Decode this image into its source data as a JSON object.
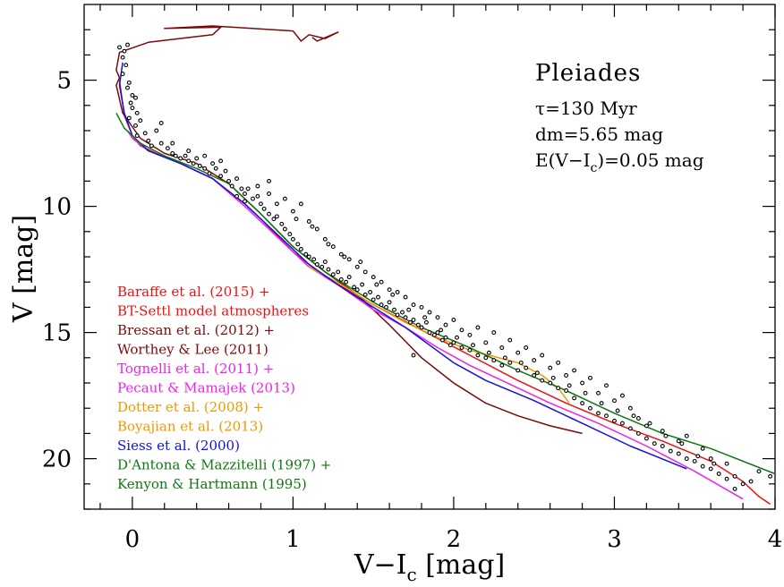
{
  "chart_data": {
    "type": "scatter",
    "xlabel": "V−I",
    "xlabel_sub": "c",
    "xlabel_unit": " [mag]",
    "ylabel": "V [mag]",
    "xlim": [
      -0.3,
      4.0
    ],
    "ylim": [
      22.0,
      2.0
    ],
    "y_inverted": true,
    "xticks": [
      0,
      1,
      2,
      3,
      4
    ],
    "yticks": [
      5,
      10,
      15,
      20
    ],
    "annotations": {
      "cluster": "Pleiades",
      "age": "τ=130 Myr",
      "dm": "dm=5.65 mag",
      "reddening_pre": "E(V−I",
      "reddening_sub": "c",
      "reddening_post": ")=0.05 mag"
    },
    "legend": [
      {
        "lines": [
          "Baraffe et al. (2015) +",
          "BT-Settl model atmospheres"
        ],
        "color": "#ee1111"
      },
      {
        "lines": [
          "Bressan et al. (2012) +",
          "Worthey & Lee (2011)"
        ],
        "color": "#7a0a0a"
      },
      {
        "lines": [
          "Tognelli et al. (2011) +",
          "Pecaut & Mamajek (2013)"
        ],
        "color": "#ee22ee"
      },
      {
        "lines": [
          "Dotter et al. (2008) +",
          "Boyajian et al. (2013)"
        ],
        "color": "#ee9900"
      },
      {
        "lines": [
          "Siess et al. (2000)"
        ],
        "color": "#1111dd"
      },
      {
        "lines": [
          "D'Antona & Mazzitelli (1997) +",
          "Kenyon & Hartmann (1995)"
        ],
        "color": "#117711"
      }
    ],
    "series": [
      {
        "color": "#ee1111",
        "x": [
          -0.08,
          -0.05,
          0.0,
          0.05,
          0.15,
          0.3,
          0.5,
          0.7,
          0.8,
          1.0,
          1.2,
          1.5,
          1.8,
          2.1,
          2.4,
          2.7,
          3.0,
          3.3,
          3.6,
          3.8,
          3.9,
          3.97
        ],
        "y": [
          5.0,
          6.4,
          7.2,
          7.6,
          7.9,
          8.3,
          8.9,
          9.9,
          10.5,
          11.8,
          12.8,
          13.9,
          14.9,
          15.9,
          16.9,
          17.8,
          18.6,
          19.3,
          20.1,
          20.9,
          21.5,
          21.8
        ]
      },
      {
        "color": "#7a0a0a",
        "x": [
          -0.08,
          -0.1,
          -0.06,
          0.05,
          0.2,
          0.4,
          0.5,
          0.6,
          0.7,
          0.8,
          1.0,
          1.2,
          1.4,
          1.6,
          1.8,
          2.0,
          2.2,
          2.4,
          2.6,
          2.8
        ],
        "y": [
          4.9,
          5.2,
          6.3,
          7.3,
          7.9,
          8.3,
          8.7,
          9.1,
          9.7,
          10.3,
          11.6,
          12.6,
          13.5,
          14.7,
          16.0,
          17.0,
          17.8,
          18.3,
          18.7,
          19.0
        ]
      },
      {
        "color": "#7a0a0a",
        "x": [
          -0.08,
          -0.1,
          -0.08,
          0.1,
          0.5,
          0.55,
          0.2,
          0.5,
          1.0,
          1.05,
          1.1,
          1.2,
          1.28,
          1.15,
          1.12
        ],
        "y": [
          4.9,
          4.6,
          3.9,
          3.5,
          3.2,
          2.9,
          2.95,
          2.85,
          3.05,
          3.45,
          3.2,
          3.35,
          3.1,
          3.45,
          3.3
        ]
      },
      {
        "color": "#ee22ee",
        "x": [
          -0.03,
          0.0,
          0.1,
          0.3,
          0.5,
          0.7,
          0.9,
          1.1,
          1.3,
          1.5,
          1.7,
          1.9,
          2.1,
          2.3,
          2.6,
          2.9,
          3.2,
          3.5,
          3.8
        ],
        "y": [
          7.0,
          7.3,
          7.8,
          8.3,
          8.9,
          10.0,
          11.2,
          12.4,
          13.2,
          14.1,
          14.8,
          15.6,
          16.3,
          16.9,
          17.8,
          18.6,
          19.5,
          20.5,
          21.6
        ]
      },
      {
        "color": "#ee9900",
        "x": [
          1.1,
          1.3,
          1.5,
          1.7,
          1.9,
          2.1,
          2.25,
          2.4,
          2.55,
          2.65,
          2.72
        ],
        "y": [
          12.4,
          13.1,
          13.9,
          14.6,
          15.2,
          15.7,
          15.95,
          16.2,
          16.7,
          17.2,
          17.8
        ]
      },
      {
        "color": "#1111dd",
        "x": [
          -0.06,
          -0.08,
          -0.05,
          0.0,
          0.1,
          0.3,
          0.5,
          0.7,
          0.9,
          1.1,
          1.3,
          1.5,
          1.7,
          1.85,
          2.0,
          2.2,
          2.5,
          2.8,
          3.1,
          3.45
        ],
        "y": [
          4.3,
          5.2,
          6.3,
          7.2,
          7.8,
          8.3,
          8.9,
          9.9,
          11.1,
          12.3,
          13.2,
          14.0,
          14.8,
          15.5,
          16.2,
          16.9,
          17.7,
          18.6,
          19.5,
          20.4
        ]
      },
      {
        "color": "#117711",
        "x": [
          -0.1,
          -0.05,
          0.05,
          0.2,
          0.4,
          0.6,
          0.8,
          1.0,
          1.2,
          1.5,
          1.8,
          2.1,
          2.4,
          2.7,
          3.0,
          3.3,
          3.6,
          4.0
        ],
        "y": [
          6.3,
          6.9,
          7.5,
          8.0,
          8.5,
          9.1,
          10.3,
          11.6,
          12.6,
          13.8,
          14.8,
          15.6,
          16.5,
          17.3,
          18.2,
          19.0,
          19.6,
          20.6
        ]
      }
    ],
    "points": [
      [
        -0.08,
        3.7
      ],
      [
        -0.03,
        3.6
      ],
      [
        -0.05,
        3.85
      ],
      [
        -0.06,
        4.1
      ],
      [
        -0.04,
        4.4
      ],
      [
        -0.06,
        4.75
      ],
      [
        -0.02,
        5.1
      ],
      [
        -0.03,
        5.3
      ],
      [
        0.0,
        5.6
      ],
      [
        -0.01,
        5.9
      ],
      [
        0.02,
        5.7
      ],
      [
        0.0,
        6.1
      ],
      [
        0.03,
        6.3
      ],
      [
        -0.02,
        6.5
      ],
      [
        0.05,
        6.6
      ],
      [
        0.02,
        6.8
      ],
      [
        0.08,
        7.1
      ],
      [
        0.03,
        7.2
      ],
      [
        0.1,
        7.4
      ],
      [
        0.15,
        7.0
      ],
      [
        0.18,
        6.7
      ],
      [
        0.18,
        7.5
      ],
      [
        0.12,
        7.6
      ],
      [
        0.22,
        7.7
      ],
      [
        0.25,
        7.9
      ],
      [
        0.27,
        8.0
      ],
      [
        0.3,
        8.1
      ],
      [
        0.33,
        8.0
      ],
      [
        0.35,
        8.2
      ],
      [
        0.38,
        8.3
      ],
      [
        0.4,
        8.1
      ],
      [
        0.42,
        8.4
      ],
      [
        0.45,
        8.5
      ],
      [
        0.48,
        8.7
      ],
      [
        0.5,
        8.3
      ],
      [
        0.52,
        8.5
      ],
      [
        0.55,
        8.8
      ],
      [
        0.58,
        8.6
      ],
      [
        0.6,
        9.0
      ],
      [
        0.62,
        9.2
      ],
      [
        0.65,
        8.9
      ],
      [
        0.68,
        9.3
      ],
      [
        0.7,
        9.5
      ],
      [
        0.72,
        9.3
      ],
      [
        0.75,
        9.7
      ],
      [
        0.78,
        9.6
      ],
      [
        0.8,
        9.9
      ],
      [
        0.82,
        10.1
      ],
      [
        0.85,
        10.3
      ],
      [
        0.88,
        10.5
      ],
      [
        0.9,
        10.4
      ],
      [
        0.93,
        10.7
      ],
      [
        0.95,
        10.9
      ],
      [
        0.98,
        11.1
      ],
      [
        1.0,
        11.3
      ],
      [
        1.03,
        11.5
      ],
      [
        1.05,
        11.7
      ],
      [
        1.08,
        11.9
      ],
      [
        1.1,
        12.0
      ],
      [
        1.13,
        12.1
      ],
      [
        1.15,
        12.3
      ],
      [
        1.18,
        12.4
      ],
      [
        1.2,
        12.2
      ],
      [
        1.22,
        12.5
      ],
      [
        1.25,
        12.7
      ],
      [
        1.28,
        12.6
      ],
      [
        1.3,
        12.9
      ],
      [
        1.33,
        13.0
      ],
      [
        1.35,
        12.8
      ],
      [
        1.38,
        13.2
      ],
      [
        1.4,
        13.3
      ],
      [
        1.43,
        13.1
      ],
      [
        1.45,
        13.5
      ],
      [
        1.48,
        13.4
      ],
      [
        1.5,
        13.7
      ],
      [
        1.53,
        13.6
      ],
      [
        1.55,
        13.9
      ],
      [
        1.58,
        14.0
      ],
      [
        1.6,
        13.8
      ],
      [
        1.63,
        14.1
      ],
      [
        1.65,
        14.3
      ],
      [
        1.68,
        14.2
      ],
      [
        1.7,
        14.4
      ],
      [
        1.73,
        14.6
      ],
      [
        1.75,
        14.5
      ],
      [
        1.78,
        14.7
      ],
      [
        1.8,
        14.8
      ],
      [
        1.83,
        14.6
      ],
      [
        1.85,
        15.0
      ],
      [
        1.88,
        15.1
      ],
      [
        1.9,
        15.0
      ],
      [
        1.93,
        15.3
      ],
      [
        1.95,
        15.2
      ],
      [
        1.98,
        15.5
      ],
      [
        2.0,
        15.4
      ],
      [
        2.05,
        15.6
      ],
      [
        2.1,
        15.7
      ],
      [
        2.15,
        15.9
      ],
      [
        2.2,
        16.0
      ],
      [
        2.25,
        16.1
      ],
      [
        2.3,
        16.3
      ],
      [
        2.35,
        16.2
      ],
      [
        2.4,
        16.5
      ],
      [
        2.45,
        16.4
      ],
      [
        2.5,
        16.7
      ],
      [
        2.55,
        16.9
      ],
      [
        2.6,
        17.0
      ],
      [
        2.65,
        17.2
      ],
      [
        2.7,
        17.3
      ],
      [
        2.75,
        17.6
      ],
      [
        2.8,
        17.8
      ],
      [
        2.85,
        18.0
      ],
      [
        2.9,
        18.2
      ],
      [
        2.95,
        18.3
      ],
      [
        3.0,
        18.5
      ],
      [
        3.05,
        18.6
      ],
      [
        3.1,
        18.8
      ],
      [
        3.15,
        19.0
      ],
      [
        3.2,
        19.2
      ],
      [
        3.25,
        19.4
      ],
      [
        3.3,
        19.5
      ],
      [
        3.35,
        19.7
      ],
      [
        3.4,
        19.8
      ],
      [
        3.45,
        20.0
      ],
      [
        3.5,
        20.1
      ],
      [
        3.55,
        20.3
      ],
      [
        3.6,
        20.4
      ],
      [
        3.65,
        20.6
      ],
      [
        3.7,
        20.8
      ],
      [
        3.75,
        20.7
      ],
      [
        3.8,
        21.0
      ],
      [
        3.9,
        20.5
      ],
      [
        3.97,
        20.7
      ],
      [
        0.65,
        9.6
      ],
      [
        0.7,
        9.8
      ],
      [
        0.78,
        9.2
      ],
      [
        0.85,
        9.0
      ],
      [
        0.95,
        9.7
      ],
      [
        1.0,
        10.2
      ],
      [
        1.05,
        9.9
      ],
      [
        1.1,
        10.6
      ],
      [
        1.15,
        10.9
      ],
      [
        1.2,
        11.3
      ],
      [
        1.25,
        11.6
      ],
      [
        1.3,
        11.9
      ],
      [
        1.35,
        12.1
      ],
      [
        1.4,
        12.4
      ],
      [
        1.45,
        12.6
      ],
      [
        1.5,
        12.8
      ],
      [
        1.55,
        13.0
      ],
      [
        1.6,
        13.3
      ],
      [
        1.65,
        13.4
      ],
      [
        1.7,
        13.6
      ],
      [
        1.75,
        13.9
      ],
      [
        1.8,
        14.0
      ],
      [
        1.85,
        14.2
      ],
      [
        1.9,
        14.4
      ],
      [
        1.95,
        14.7
      ],
      [
        2.0,
        14.5
      ],
      [
        2.05,
        14.9
      ],
      [
        2.1,
        15.1
      ],
      [
        2.15,
        14.8
      ],
      [
        2.2,
        15.4
      ],
      [
        2.25,
        15.0
      ],
      [
        2.3,
        15.6
      ],
      [
        2.35,
        15.3
      ],
      [
        2.4,
        15.8
      ],
      [
        2.45,
        15.6
      ],
      [
        2.5,
        16.1
      ],
      [
        2.55,
        15.9
      ],
      [
        2.6,
        16.4
      ],
      [
        2.65,
        16.2
      ],
      [
        2.7,
        16.7
      ],
      [
        2.75,
        16.5
      ],
      [
        2.8,
        17.0
      ],
      [
        2.85,
        16.8
      ],
      [
        2.9,
        17.4
      ],
      [
        2.95,
        17.1
      ],
      [
        3.0,
        17.7
      ],
      [
        3.05,
        17.5
      ],
      [
        3.1,
        18.0
      ],
      [
        3.15,
        18.4
      ],
      [
        3.2,
        18.7
      ],
      [
        3.3,
        18.9
      ],
      [
        3.4,
        19.3
      ],
      [
        3.45,
        19.1
      ],
      [
        3.55,
        19.6
      ],
      [
        3.6,
        20.0
      ],
      [
        3.7,
        20.2
      ],
      [
        3.75,
        21.2
      ],
      [
        3.85,
        20.9
      ],
      [
        0.85,
        9.5
      ],
      [
        0.9,
        9.9
      ],
      [
        1.02,
        10.5
      ],
      [
        1.12,
        10.8
      ],
      [
        1.22,
        11.5
      ],
      [
        1.32,
        12.0
      ],
      [
        1.42,
        12.2
      ],
      [
        1.52,
        13.1
      ],
      [
        1.62,
        13.5
      ],
      [
        1.72,
        14.1
      ],
      [
        1.82,
        14.4
      ],
      [
        1.92,
        14.9
      ],
      [
        2.02,
        15.2
      ],
      [
        2.12,
        15.5
      ],
      [
        2.22,
        15.8
      ],
      [
        2.32,
        16.0
      ],
      [
        2.42,
        16.2
      ],
      [
        2.52,
        16.6
      ],
      [
        2.62,
        16.8
      ],
      [
        2.72,
        17.1
      ],
      [
        2.82,
        17.4
      ],
      [
        2.92,
        17.8
      ],
      [
        3.02,
        18.1
      ],
      [
        3.12,
        18.3
      ],
      [
        3.22,
        18.6
      ],
      [
        3.32,
        19.1
      ],
      [
        3.42,
        19.4
      ],
      [
        3.52,
        19.9
      ],
      [
        3.62,
        20.2
      ],
      [
        0.55,
        8.2
      ],
      [
        0.45,
        8.0
      ],
      [
        0.35,
        7.8
      ],
      [
        0.25,
        7.5
      ],
      [
        1.75,
        15.9
      ]
    ]
  }
}
